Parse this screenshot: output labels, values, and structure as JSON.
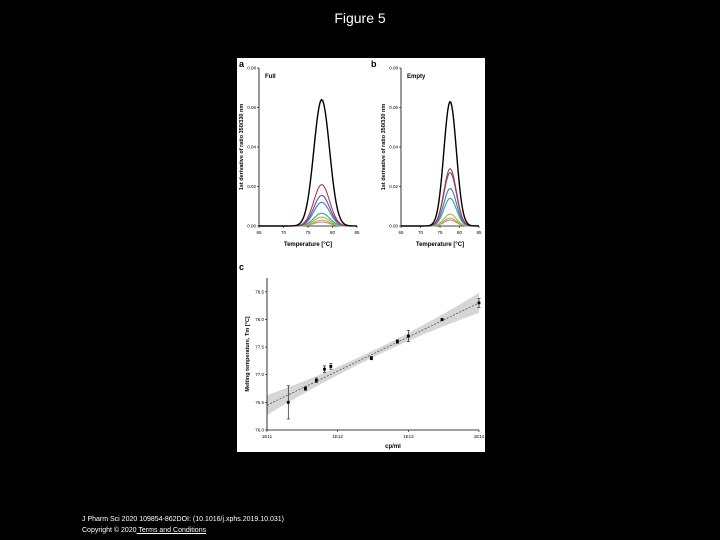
{
  "slide_title": "Figure 5",
  "footer": {
    "citation": "J Pharm Sci 2020 109854-862DOI: (10.1016/j.xphs.2019.10.031)",
    "copyright": "Copyright © 2020",
    "terms_link": " Terms and Conditions"
  },
  "chart_data": [
    {
      "panel_letter": "a",
      "type": "line",
      "legend_text": "Full",
      "xlabel": "Temperature [°C]",
      "ylabel": "1st derivative of ratio 350/330 nm",
      "xlim": [
        65,
        85
      ],
      "ylim": [
        0,
        0.08
      ],
      "xticks": [
        "65",
        "70",
        "75",
        "80",
        "85"
      ],
      "yticks": [
        "0.00",
        "0.02",
        "0.04",
        "0.06",
        "0.08"
      ],
      "peak_center": 77.8,
      "peak_width": 1.6,
      "series": [
        {
          "color": "#000000",
          "peak": 0.064
        },
        {
          "color": "#b03a48",
          "peak": 0.021
        },
        {
          "color": "#6a4fa0",
          "peak": 0.0155
        },
        {
          "color": "#3b7cc4",
          "peak": 0.012
        },
        {
          "color": "#3aa58a",
          "peak": 0.0065
        },
        {
          "color": "#8fc24a",
          "peak": 0.0045
        },
        {
          "color": "#e89a3c",
          "peak": 0.003
        },
        {
          "color": "#9a9a9a",
          "peak": 0.002
        }
      ]
    },
    {
      "panel_letter": "b",
      "type": "line",
      "legend_text": "Empty",
      "xlabel": "Temperature [°C]",
      "ylabel": "1st derivative of ratio 350/330 nm",
      "xlim": [
        65,
        85
      ],
      "ylim": [
        0,
        0.08
      ],
      "xticks": [
        "65",
        "70",
        "75",
        "80",
        "85"
      ],
      "yticks": [
        "0.00",
        "0.02",
        "0.04",
        "0.06",
        "0.08"
      ],
      "peak_center": 77.6,
      "peak_width": 1.6,
      "series": [
        {
          "color": "#000000",
          "peak": 0.063
        },
        {
          "color": "#b03a48",
          "peak": 0.029
        },
        {
          "color": "#6a4fa0",
          "peak": 0.027
        },
        {
          "color": "#3b7cc4",
          "peak": 0.019
        },
        {
          "color": "#3aa58a",
          "peak": 0.014
        },
        {
          "color": "#8fc24a",
          "peak": 0.006
        },
        {
          "color": "#e89a3c",
          "peak": 0.004
        },
        {
          "color": "#9a9a9a",
          "peak": 0.003
        }
      ]
    },
    {
      "panel_letter": "c",
      "type": "scatter",
      "xlabel": "cp/ml",
      "ylabel": "Melting temperature, Tm [°C]",
      "xscale": "log",
      "xlim": [
        100000000000.0,
        100000000000000.0
      ],
      "ylim": [
        76.0,
        78.75
      ],
      "xticks": [
        "1E11",
        "1E12",
        "1E13",
        "1E14"
      ],
      "yticks": [
        "76.0",
        "76.5",
        "77.0",
        "77.5",
        "78.0",
        "78.5"
      ],
      "points": [
        {
          "x": 200000000000.0,
          "y": 76.5,
          "err": 0.3
        },
        {
          "x": 350000000000.0,
          "y": 76.75,
          "err": 0.03
        },
        {
          "x": 500000000000.0,
          "y": 76.9,
          "err": 0.04
        },
        {
          "x": 650000000000.0,
          "y": 77.1,
          "err": 0.06
        },
        {
          "x": 800000000000.0,
          "y": 77.15,
          "err": 0.05
        },
        {
          "x": 3000000000000.0,
          "y": 77.3,
          "err": 0.03
        },
        {
          "x": 7000000000000.0,
          "y": 77.6,
          "err": 0.03
        },
        {
          "x": 10000000000000.0,
          "y": 77.7,
          "err": 0.1
        },
        {
          "x": 30000000000000.0,
          "y": 78.0,
          "err": 0.02
        },
        {
          "x": 100000000000000.0,
          "y": 78.3,
          "err": 0.08
        }
      ],
      "fit_line": [
        {
          "x": 100000000000.0,
          "y": 76.45
        },
        {
          "x": 100000000000000.0,
          "y": 78.3
        }
      ],
      "band_half_width_ends": 0.18,
      "band_half_width_mid": 0.06
    }
  ]
}
